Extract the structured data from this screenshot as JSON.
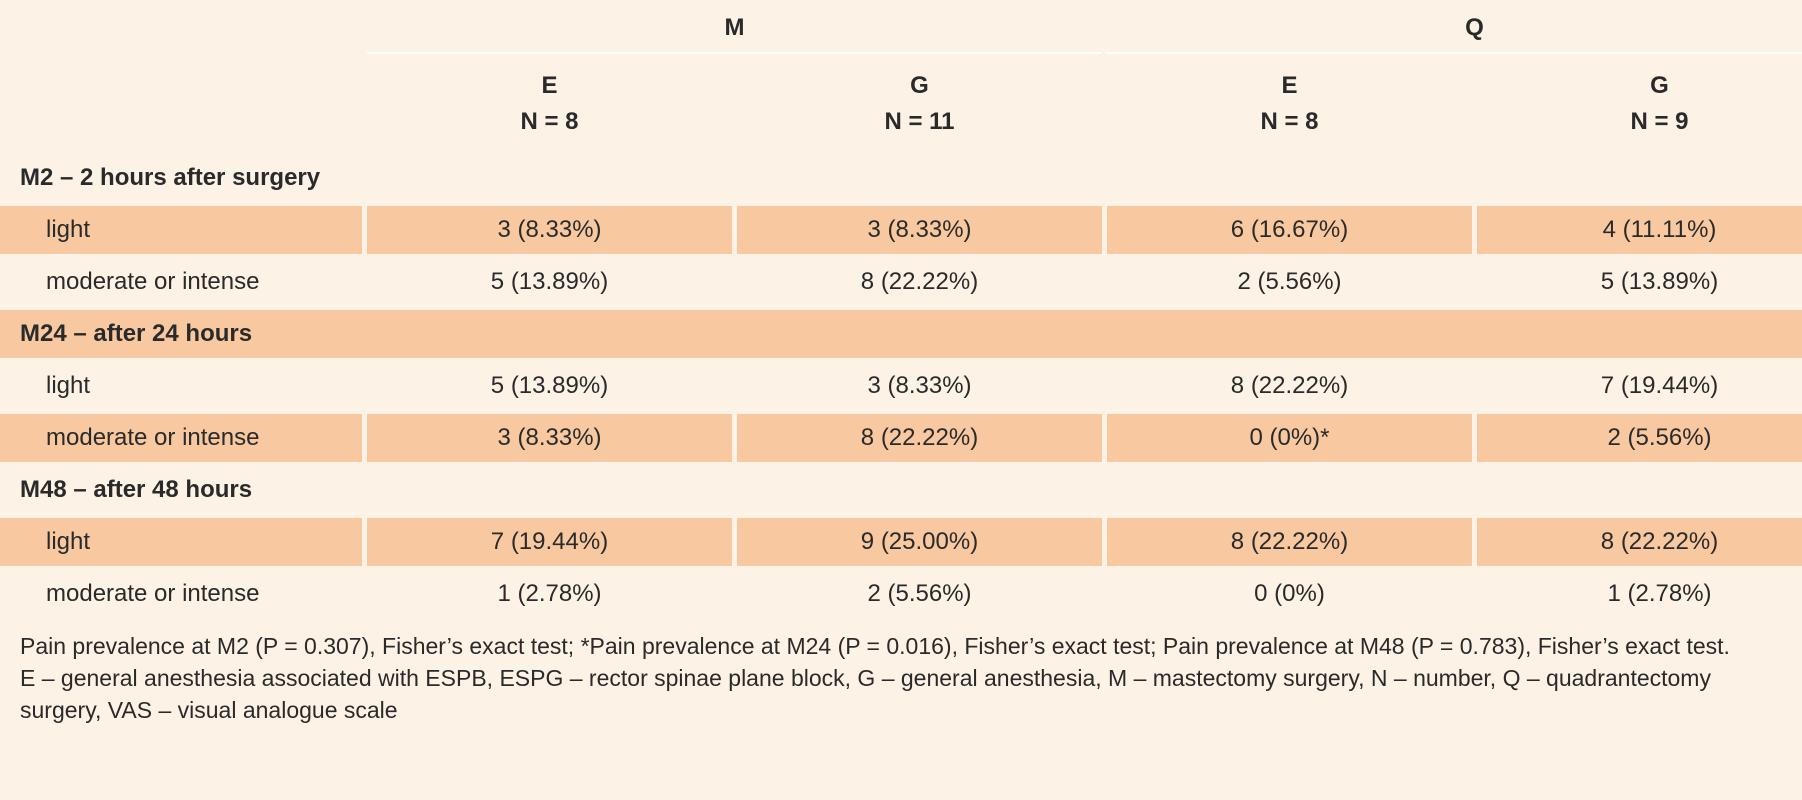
{
  "header": {
    "groups": [
      "M",
      "Q"
    ],
    "columns": [
      {
        "label": "E",
        "n": "N = 8"
      },
      {
        "label": "G",
        "n": "N = 11"
      },
      {
        "label": "E",
        "n": "N = 8"
      },
      {
        "label": "G",
        "n": "N = 9"
      }
    ]
  },
  "sections": [
    {
      "title": "M2 – 2 hours after surgery",
      "rows": [
        {
          "label": "light",
          "values": [
            "3 (8.33%)",
            "3 (8.33%)",
            "6 (16.67%)",
            "4 (11.11%)"
          ]
        },
        {
          "label": "moderate or intense",
          "values": [
            "5 (13.89%)",
            "8 (22.22%)",
            "2 (5.56%)",
            "5 (13.89%)"
          ]
        }
      ]
    },
    {
      "title": "M24 – after 24 hours",
      "rows": [
        {
          "label": "light",
          "values": [
            "5 (13.89%)",
            "3 (8.33%)",
            "8 (22.22%)",
            "7 (19.44%)"
          ]
        },
        {
          "label": "moderate or intense",
          "values": [
            "3 (8.33%)",
            "8 (22.22%)",
            "0 (0%)*",
            "2 (5.56%)"
          ]
        }
      ]
    },
    {
      "title": "M48 – after 48 hours",
      "rows": [
        {
          "label": "light",
          "values": [
            "7 (19.44%)",
            "9 (25.00%)",
            "8 (22.22%)",
            "8 (22.22%)"
          ]
        },
        {
          "label": "moderate or intense",
          "values": [
            "1 (2.78%)",
            "2 (5.56%)",
            "0 (0%)",
            "1 (2.78%)"
          ]
        }
      ]
    }
  ],
  "notes": {
    "line1": "Pain prevalence at M2 (P = 0.307), Fisher’s exact test; *Pain prevalence at M24 (P = 0.016), Fisher’s exact test; Pain prevalence at M48 (P = 0.783), Fisher’s exact test.",
    "line2": "E – general anesthesia associated with ESPB, ESPG – rector spinae plane block, G – general anesthesia, M – mastectomy surgery, N – number, Q – quadrantectomy surgery, VAS – visual analogue scale"
  },
  "colors": {
    "background": "#fdf2e6",
    "row_shade": "#f8c9a0"
  }
}
